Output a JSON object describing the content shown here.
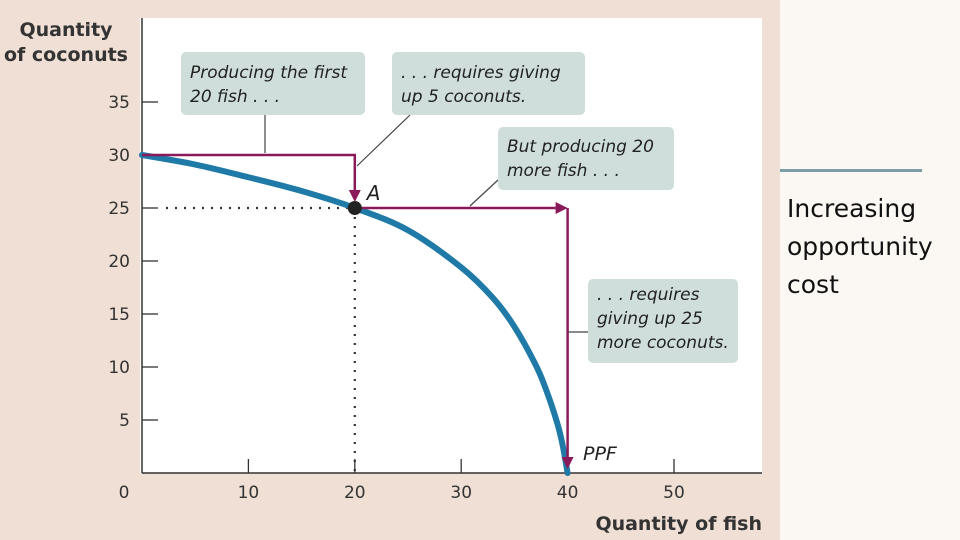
{
  "slide": {
    "side_text": [
      "Increasing",
      "opportunity",
      "cost"
    ]
  },
  "chart_data": {
    "type": "line",
    "ylabel": [
      "Quantity",
      "of coconuts"
    ],
    "xlabel": "Quantity of fish",
    "xlim": [
      0,
      58
    ],
    "ylim": [
      0,
      38
    ],
    "x_ticks": [
      0,
      10,
      20,
      30,
      40,
      50
    ],
    "y_ticks": [
      5,
      10,
      15,
      20,
      25,
      30,
      35
    ],
    "grid": false,
    "curve_color": "#1f7aa8",
    "arrow_color": "#8b1a5a",
    "callout_color": "#cfdedb",
    "series": [
      {
        "name": "PPF",
        "x": [
          0,
          5,
          10,
          15,
          20,
          25,
          30,
          33,
          35,
          37,
          38,
          39,
          39.5,
          40
        ],
        "y": [
          30,
          29.1,
          27.9,
          26.6,
          25,
          22.9,
          19.4,
          16.5,
          13.8,
          10.2,
          7.8,
          4.8,
          2.8,
          0
        ]
      }
    ],
    "point": {
      "label": "A",
      "x": 20,
      "y": 25
    },
    "annotations": [
      {
        "id": "callout-first",
        "lines": [
          "Producing the first",
          "20 fish . . ."
        ]
      },
      {
        "id": "callout-requires-5",
        "lines": [
          ". . . requires giving",
          "up 5 coconuts."
        ]
      },
      {
        "id": "callout-more",
        "lines": [
          "But producing 20",
          "more fish . . ."
        ]
      },
      {
        "id": "callout-requires-25",
        "lines": [
          ". . . requires",
          "giving up 25",
          "more coconuts."
        ]
      }
    ]
  }
}
